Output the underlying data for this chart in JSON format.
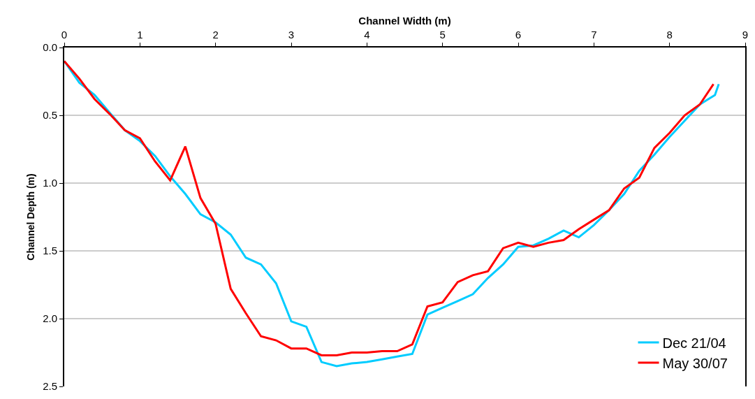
{
  "chart_data": {
    "type": "line",
    "xlabel": "Channel Width (m)",
    "ylabel": "Channel Depth (m)",
    "xlim": [
      0,
      9
    ],
    "xticks": [
      0,
      1,
      2,
      3,
      4,
      5,
      6,
      7,
      8,
      9
    ],
    "ylim": [
      2.5,
      0
    ],
    "yticks": [
      {
        "value": 0,
        "label": "0.0"
      },
      {
        "value": 0.5,
        "label": "0.5"
      },
      {
        "value": 1,
        "label": "1.0"
      },
      {
        "value": 1.5,
        "label": "1.5"
      },
      {
        "value": 2,
        "label": "2.0"
      },
      {
        "value": 2.5,
        "label": "2.5"
      }
    ],
    "grid": "y",
    "legend": "bottom right",
    "marker": "none",
    "line_style": "solid",
    "series": [
      {
        "name": "Dec 21/04",
        "color": "#00ccff",
        "x": [
          0,
          0.2,
          0.4,
          0.6,
          0.8,
          1.0,
          1.2,
          1.4,
          1.6,
          1.8,
          2.0,
          2.2,
          2.4,
          2.6,
          2.8,
          3.0,
          3.2,
          3.4,
          3.6,
          3.8,
          4.0,
          4.2,
          4.4,
          4.6,
          4.8,
          5.0,
          5.2,
          5.4,
          5.6,
          5.8,
          6.0,
          6.2,
          6.4,
          6.6,
          6.8,
          7.0,
          7.2,
          7.4,
          7.6,
          7.8,
          8.0,
          8.2,
          8.4,
          8.6,
          8.65
        ],
        "values": [
          0.1,
          0.26,
          0.35,
          0.48,
          0.61,
          0.69,
          0.8,
          0.95,
          1.08,
          1.23,
          1.29,
          1.38,
          1.55,
          1.6,
          1.74,
          2.02,
          2.06,
          2.32,
          2.35,
          2.33,
          2.32,
          2.3,
          2.28,
          2.26,
          1.97,
          1.92,
          1.87,
          1.82,
          1.7,
          1.6,
          1.47,
          1.46,
          1.41,
          1.35,
          1.4,
          1.31,
          1.2,
          1.08,
          0.91,
          0.79,
          0.66,
          0.54,
          0.42,
          0.35,
          0.27
        ]
      },
      {
        "name": "May 30/07",
        "color": "#ff0000",
        "x": [
          0,
          0.2,
          0.4,
          0.6,
          0.8,
          1.0,
          1.2,
          1.4,
          1.6,
          1.8,
          2.0,
          2.2,
          2.4,
          2.6,
          2.8,
          3.0,
          3.2,
          3.4,
          3.6,
          3.8,
          4.0,
          4.2,
          4.4,
          4.6,
          4.8,
          5.0,
          5.2,
          5.4,
          5.6,
          5.8,
          6.0,
          6.2,
          6.4,
          6.6,
          6.8,
          7.0,
          7.2,
          7.4,
          7.6,
          7.8,
          8.0,
          8.2,
          8.4,
          8.58
        ],
        "values": [
          0.1,
          0.23,
          0.38,
          0.49,
          0.61,
          0.67,
          0.84,
          0.98,
          0.73,
          1.11,
          1.3,
          1.78,
          1.96,
          2.13,
          2.16,
          2.22,
          2.22,
          2.27,
          2.27,
          2.25,
          2.25,
          2.24,
          2.24,
          2.19,
          1.91,
          1.88,
          1.73,
          1.68,
          1.65,
          1.48,
          1.44,
          1.47,
          1.44,
          1.42,
          1.34,
          1.27,
          1.2,
          1.04,
          0.96,
          0.74,
          0.63,
          0.5,
          0.42,
          0.27
        ]
      }
    ]
  }
}
